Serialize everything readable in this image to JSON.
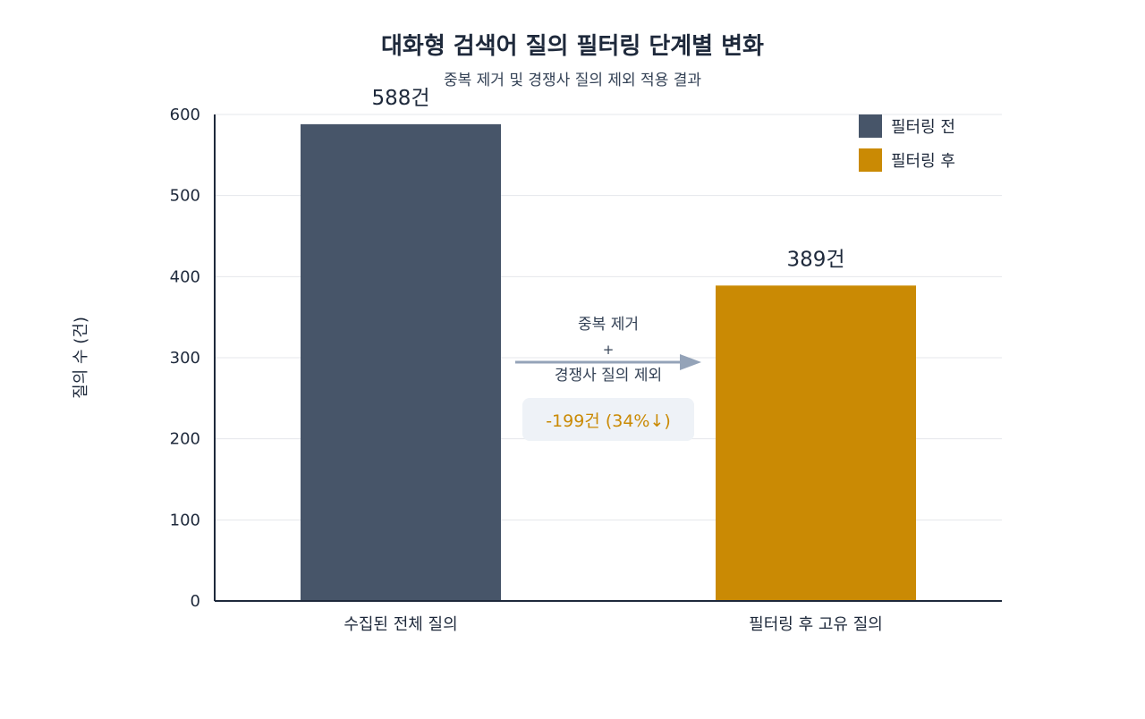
{
  "chart_data": {
    "type": "bar",
    "title": "대화형 검색어 질의 필터링 단계별 변화",
    "subtitle": "중복 제거 및 경쟁사 질의 제외 적용 결과",
    "ylabel": "질의 수 (건)",
    "xlabel": "",
    "ylim": [
      0,
      600
    ],
    "yticks": [
      0,
      100,
      200,
      300,
      400,
      500,
      600
    ],
    "grid": true,
    "legend_position": "top-right",
    "categories": [
      "수집된 전체 질의",
      "필터링 후 고유 질의"
    ],
    "values": [
      588,
      389
    ],
    "value_labels": [
      "588건",
      "389건"
    ],
    "series": [
      {
        "name": "필터링 전",
        "color": "#475569"
      },
      {
        "name": "필터링 후",
        "color": "#ca8a04"
      }
    ],
    "annotation": {
      "line1": "중복 제거",
      "line2": "+",
      "line3": "경쟁사 질의 제외",
      "change": "-199건 (34%↓)",
      "change_color": "#ca8a04"
    }
  },
  "colors": {
    "text": "#1e293b",
    "muted_text": "#334155",
    "grid": "#e5e7eb",
    "axis": "#1e293b",
    "arrow": "#94a3b8",
    "badge_bg": "#eef2f7"
  }
}
